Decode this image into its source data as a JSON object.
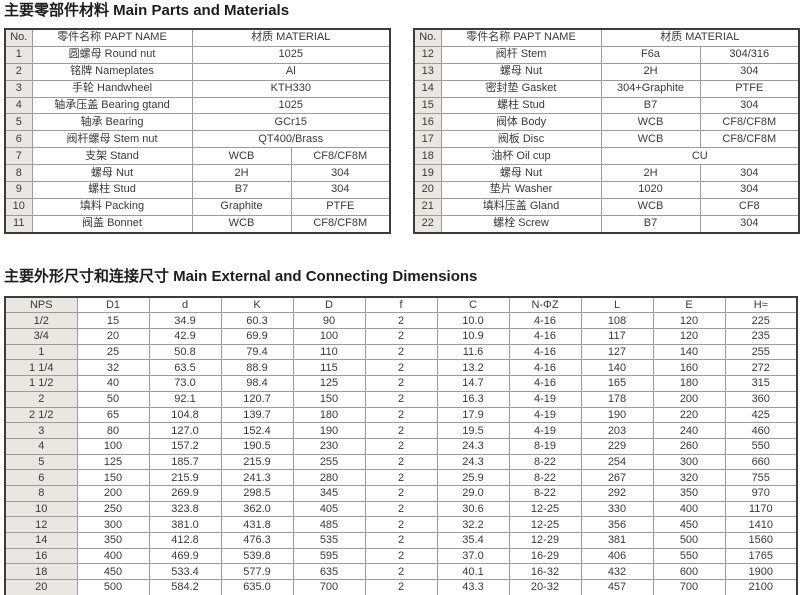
{
  "page": {
    "section1_title": "主要零部件材料 Main Parts and Materials",
    "section2_title": "主要外形尺寸和连接尺寸 Main External and Connecting Dimensions"
  },
  "colors": {
    "shade": "#e9e7e1",
    "border_dark": "#3c3c3c",
    "border_light": "#9c9c9c",
    "text": "#3a3a3a"
  },
  "parts": {
    "headers": {
      "no": "No.",
      "name": "零件名称 PAPT NAME",
      "material": "材质 MATERIAL"
    },
    "left_rows": [
      {
        "no": "1",
        "name": "圆螺母 Round nut",
        "m1": "1025"
      },
      {
        "no": "2",
        "name": "铭牌 Nameplates",
        "m1": "Al"
      },
      {
        "no": "3",
        "name": "手轮 Handwheel",
        "m1": "KTH330"
      },
      {
        "no": "4",
        "name": "轴承压盖 Bearing gtand",
        "m1": "1025"
      },
      {
        "no": "5",
        "name": "轴承 Bearing",
        "m1": "GCr15"
      },
      {
        "no": "6",
        "name": "阀杆螺母 Stem nut",
        "m1": "QT400/Brass"
      },
      {
        "no": "7",
        "name": "支架 Stand",
        "m1": "WCB",
        "m2": "CF8/CF8M"
      },
      {
        "no": "8",
        "name": "螺母 Nut",
        "m1": "2H",
        "m2": "304"
      },
      {
        "no": "9",
        "name": "螺柱 Stud",
        "m1": "B7",
        "m2": "304"
      },
      {
        "no": "10",
        "name": "填料 Packing",
        "m1": "Graphite",
        "m2": "PTFE"
      },
      {
        "no": "11",
        "name": "阀盖 Bonnet",
        "m1": "WCB",
        "m2": "CF8/CF8M"
      }
    ],
    "right_rows": [
      {
        "no": "12",
        "name": "阀杆 Stem",
        "m1": "F6a",
        "m2": "304/316"
      },
      {
        "no": "13",
        "name": "螺母 Nut",
        "m1": "2H",
        "m2": "304"
      },
      {
        "no": "14",
        "name": "密封垫 Gasket",
        "m1": "304+Graphite",
        "m2": "PTFE"
      },
      {
        "no": "15",
        "name": "螺柱 Stud",
        "m1": "B7",
        "m2": "304"
      },
      {
        "no": "16",
        "name": "阀体 Body",
        "m1": "WCB",
        "m2": "CF8/CF8M"
      },
      {
        "no": "17",
        "name": "阀板 Disc",
        "m1": "WCB",
        "m2": "CF8/CF8M"
      },
      {
        "no": "18",
        "name": "油杯 Oil cup",
        "m1": "CU"
      },
      {
        "no": "19",
        "name": "螺母 Nut",
        "m1": "2H",
        "m2": "304"
      },
      {
        "no": "20",
        "name": "垫片 Washer",
        "m1": "1020",
        "m2": "304"
      },
      {
        "no": "21",
        "name": "填料压盖 Gland",
        "m1": "WCB",
        "m2": "CF8"
      },
      {
        "no": "22",
        "name": "螺栓 Screw",
        "m1": "B7",
        "m2": "304"
      }
    ]
  },
  "dimensions": {
    "columns": [
      "NPS",
      "D1",
      "d",
      "K",
      "D",
      "f",
      "C",
      "N-ΦZ",
      "L",
      "E",
      "H≈"
    ],
    "rows": [
      [
        "1/2",
        "15",
        "34.9",
        "60.3",
        "90",
        "2",
        "10.0",
        "4-16",
        "108",
        "120",
        "225"
      ],
      [
        "3/4",
        "20",
        "42.9",
        "69.9",
        "100",
        "2",
        "10.9",
        "4-16",
        "117",
        "120",
        "235"
      ],
      [
        "1",
        "25",
        "50.8",
        "79.4",
        "110",
        "2",
        "11.6",
        "4-16",
        "127",
        "140",
        "255"
      ],
      [
        "1 1/4",
        "32",
        "63.5",
        "88.9",
        "115",
        "2",
        "13.2",
        "4-16",
        "140",
        "160",
        "272"
      ],
      [
        "1 1/2",
        "40",
        "73.0",
        "98.4",
        "125",
        "2",
        "14.7",
        "4-16",
        "165",
        "180",
        "315"
      ],
      [
        "2",
        "50",
        "92.1",
        "120.7",
        "150",
        "2",
        "16.3",
        "4-19",
        "178",
        "200",
        "360"
      ],
      [
        "2 1/2",
        "65",
        "104.8",
        "139.7",
        "180",
        "2",
        "17.9",
        "4-19",
        "190",
        "220",
        "425"
      ],
      [
        "3",
        "80",
        "127.0",
        "152.4",
        "190",
        "2",
        "19.5",
        "4-19",
        "203",
        "240",
        "460"
      ],
      [
        "4",
        "100",
        "157.2",
        "190.5",
        "230",
        "2",
        "24.3",
        "8-19",
        "229",
        "260",
        "550"
      ],
      [
        "5",
        "125",
        "185.7",
        "215.9",
        "255",
        "2",
        "24.3",
        "8-22",
        "254",
        "300",
        "660"
      ],
      [
        "6",
        "150",
        "215.9",
        "241.3",
        "280",
        "2",
        "25.9",
        "8-22",
        "267",
        "320",
        "755"
      ],
      [
        "8",
        "200",
        "269.9",
        "298.5",
        "345",
        "2",
        "29.0",
        "8-22",
        "292",
        "350",
        "970"
      ],
      [
        "10",
        "250",
        "323.8",
        "362.0",
        "405",
        "2",
        "30.6",
        "12-25",
        "330",
        "400",
        "1170"
      ],
      [
        "12",
        "300",
        "381.0",
        "431.8",
        "485",
        "2",
        "32.2",
        "12-25",
        "356",
        "450",
        "1410"
      ],
      [
        "14",
        "350",
        "412.8",
        "476.3",
        "535",
        "2",
        "35.4",
        "12-29",
        "381",
        "500",
        "1560"
      ],
      [
        "16",
        "400",
        "469.9",
        "539.8",
        "595",
        "2",
        "37.0",
        "16-29",
        "406",
        "550",
        "1765"
      ],
      [
        "18",
        "450",
        "533.4",
        "577.9",
        "635",
        "2",
        "40.1",
        "16-32",
        "432",
        "600",
        "1900"
      ],
      [
        "20",
        "500",
        "584.2",
        "635.0",
        "700",
        "2",
        "43.3",
        "20-32",
        "457",
        "700",
        "2100"
      ]
    ]
  }
}
